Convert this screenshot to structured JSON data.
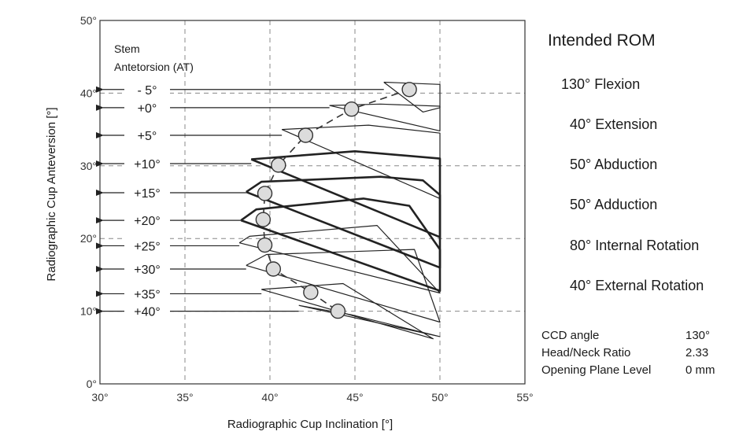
{
  "chart_data": {
    "type": "line",
    "xlabel": "Radiographic Cup Inclination [°]",
    "ylabel": "Radiographic Cup Anteversion [°]",
    "xlim": [
      30,
      55
    ],
    "ylim": [
      0,
      50
    ],
    "x_ticks": [
      "30°",
      "35°",
      "40°",
      "45°",
      "50°",
      "55°"
    ],
    "y_ticks": [
      "0°",
      "10°",
      "20°",
      "30°",
      "40°",
      "50°"
    ],
    "grid": "dashed",
    "stem_title": "Stem\nAntetorsion (AT)",
    "zones": [
      {
        "label": "- 5°",
        "arrow_y": 40.5,
        "bold": false,
        "points": [
          [
            46.7,
            41.5
          ],
          [
            50.0,
            41.2
          ],
          [
            50.0,
            38.0
          ],
          [
            49.0,
            37.4
          ],
          [
            46.7,
            41.5
          ]
        ]
      },
      {
        "label": "+0°",
        "arrow_y": 38.0,
        "bold": false,
        "points": [
          [
            43.5,
            38.3
          ],
          [
            46.5,
            38.5
          ],
          [
            50.0,
            38.2
          ],
          [
            50.0,
            34.8
          ],
          [
            43.5,
            38.3
          ]
        ]
      },
      {
        "label": "+5°",
        "arrow_y": 34.2,
        "bold": false,
        "points": [
          [
            40.7,
            35.0
          ],
          [
            45.8,
            35.6
          ],
          [
            50.0,
            34.5
          ],
          [
            50.0,
            25.5
          ],
          [
            40.7,
            35.0
          ]
        ]
      },
      {
        "label": "+10°",
        "arrow_y": 30.3,
        "bold": true,
        "points": [
          [
            38.9,
            30.9
          ],
          [
            45.0,
            32.0
          ],
          [
            50.0,
            31.0
          ],
          [
            50.0,
            20.2
          ],
          [
            38.9,
            30.9
          ]
        ]
      },
      {
        "label": "+15°",
        "arrow_y": 26.3,
        "bold": true,
        "points": [
          [
            38.6,
            26.4
          ],
          [
            39.5,
            27.8
          ],
          [
            46.5,
            28.5
          ],
          [
            49.0,
            28.0
          ],
          [
            50.0,
            26.0
          ],
          [
            50.0,
            16.0
          ],
          [
            38.6,
            26.4
          ]
        ]
      },
      {
        "label": "+20°",
        "arrow_y": 22.5,
        "bold": true,
        "points": [
          [
            38.3,
            22.5
          ],
          [
            39.2,
            24.0
          ],
          [
            45.5,
            25.5
          ],
          [
            48.2,
            24.5
          ],
          [
            50.0,
            18.5
          ],
          [
            50.0,
            12.8
          ],
          [
            38.3,
            22.5
          ]
        ]
      },
      {
        "label": "+25°",
        "arrow_y": 19.0,
        "bold": false,
        "points": [
          [
            38.2,
            19.4
          ],
          [
            38.8,
            20.3
          ],
          [
            46.3,
            21.8
          ],
          [
            50.0,
            12.5
          ],
          [
            38.2,
            19.4
          ]
        ]
      },
      {
        "label": "+30°",
        "arrow_y": 15.8,
        "bold": false,
        "points": [
          [
            38.6,
            16.3
          ],
          [
            39.8,
            17.8
          ],
          [
            48.5,
            18.5
          ],
          [
            50.0,
            8.5
          ],
          [
            38.6,
            16.3
          ]
        ]
      },
      {
        "label": "+35°",
        "arrow_y": 12.4,
        "bold": false,
        "points": [
          [
            39.5,
            13.0
          ],
          [
            44.3,
            13.8
          ],
          [
            49.6,
            6.2
          ],
          [
            39.5,
            13.0
          ]
        ]
      },
      {
        "label": "+40°",
        "arrow_y": 10.0,
        "bold": false,
        "points": [
          [
            41.7,
            10.8
          ],
          [
            44.8,
            9.5
          ],
          [
            50.0,
            6.5
          ],
          [
            41.7,
            10.8
          ]
        ]
      }
    ],
    "optimum_points": [
      {
        "label": "- 5°",
        "x": 48.2,
        "y": 40.5
      },
      {
        "label": "+0°",
        "x": 44.8,
        "y": 37.8
      },
      {
        "label": "+5°",
        "x": 42.1,
        "y": 34.2
      },
      {
        "label": "+10°",
        "x": 40.5,
        "y": 30.1
      },
      {
        "label": "+15°",
        "x": 39.7,
        "y": 26.2
      },
      {
        "label": "+20°",
        "x": 39.6,
        "y": 22.6
      },
      {
        "label": "+25°",
        "x": 39.7,
        "y": 19.1
      },
      {
        "label": "+30°",
        "x": 40.2,
        "y": 15.8
      },
      {
        "label": "+35°",
        "x": 42.4,
        "y": 12.6
      },
      {
        "label": "+40°",
        "x": 44.0,
        "y": 10.0
      }
    ]
  },
  "rom": {
    "title": "Intended ROM",
    "items": [
      "130° Flexion",
      "40° Extension",
      "50° Abduction",
      "50° Adduction",
      "80° Internal Rotation",
      "40° External Rotation"
    ]
  },
  "params": [
    {
      "label": "CCD angle",
      "value": "130°"
    },
    {
      "label": "Head/Neck Ratio",
      "value": "2.33"
    },
    {
      "label": "Opening Plane Level",
      "value": "0 mm"
    }
  ]
}
